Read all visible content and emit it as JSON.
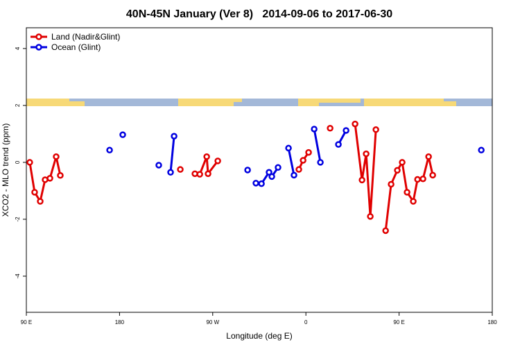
{
  "chart_data": {
    "type": "line",
    "title": "40N-45N January (Ver 8)   2014-09-06 to 2017-06-30",
    "x_label": "Longitude (deg E)",
    "y_label": "XCO2 - MLO trend (ppm)",
    "xlim": [
      90,
      540
    ],
    "ylim": [
      -5.27,
      4.73
    ],
    "xticks": [
      {
        "value": 90,
        "label": "90 E"
      },
      180,
      {
        "value": 270,
        "label": "90 W"
      },
      {
        "value": 360,
        "label": "0"
      },
      {
        "value": 450,
        "label": "90 E"
      },
      {
        "value": 540,
        "label": "180"
      }
    ],
    "yticks": [
      -4,
      -2,
      0,
      2,
      4
    ],
    "legend": "top-left",
    "series": [
      {
        "name": "Land (Nadir&Glint)",
        "color": "#e00000",
        "x": [
          93.3,
          98,
          103.4,
          108.1,
          112.8,
          118.8,
          122.8,
          null,
          238.7,
          null,
          252.8,
          257.5,
          264.2,
          265.5,
          274.9,
          null,
          353.2,
          357.3,
          362.6,
          null,
          383.4,
          null,
          407.5,
          414.2,
          418.2,
          422.2,
          427.6,
          null,
          437,
          442.3,
          448.3,
          453,
          457.7,
          463.7,
          467.8,
          473.1,
          478.5,
          482.5
        ],
        "values": [
          0,
          -1.05,
          -1.37,
          -0.61,
          -0.56,
          0.2,
          -0.46,
          null,
          -0.25,
          null,
          -0.4,
          -0.42,
          0.2,
          -0.4,
          0.05,
          null,
          -0.25,
          0.07,
          0.35,
          null,
          1.2,
          null,
          1.35,
          -0.62,
          0.3,
          -1.9,
          1.15,
          null,
          -2.4,
          -0.77,
          -0.28,
          0,
          -1.05,
          -1.37,
          -0.6,
          -0.58,
          0.2,
          -0.45
        ]
      },
      {
        "name": "Ocean (Glint)",
        "color": "#0000e0",
        "x": [
          170.4,
          null,
          183.1,
          null,
          217.9,
          null,
          229.3,
          232.7,
          null,
          303.7,
          null,
          311.7,
          317.1,
          324.4,
          327.1,
          333.1,
          null,
          343.2,
          348.5,
          null,
          368,
          374,
          null,
          391.4,
          398.8,
          null,
          529.4
        ],
        "values": [
          0.43,
          null,
          0.97,
          null,
          -0.1,
          null,
          -0.35,
          0.92,
          null,
          -0.27,
          null,
          -0.73,
          -0.75,
          -0.35,
          -0.5,
          -0.18,
          null,
          0.5,
          -0.45,
          null,
          1.17,
          0,
          null,
          0.63,
          1.12,
          null,
          0.43
        ]
      }
    ]
  }
}
